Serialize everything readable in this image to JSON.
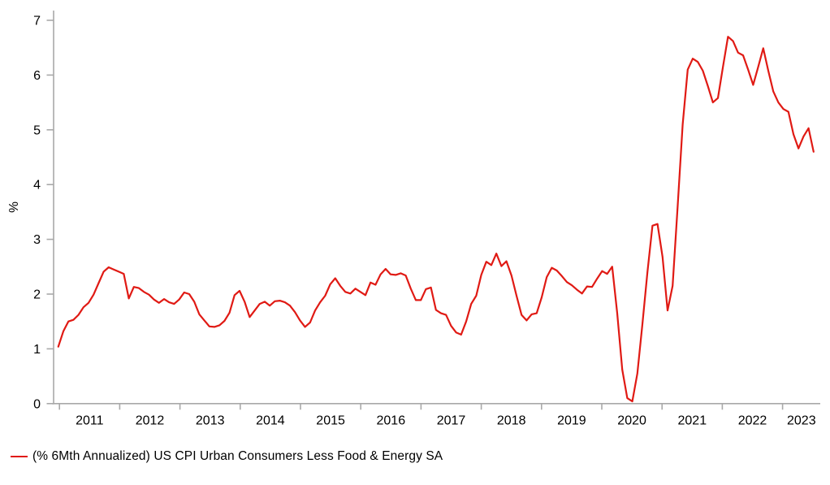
{
  "chart_data": {
    "type": "line",
    "title": "",
    "xlabel": "",
    "ylabel": "%",
    "ylim": [
      0,
      7
    ],
    "y_ticks": [
      0,
      1,
      2,
      3,
      4,
      5,
      6,
      7
    ],
    "x_tick_labels": [
      "2011",
      "2012",
      "2013",
      "2014",
      "2015",
      "2016",
      "2017",
      "2018",
      "2019",
      "2020",
      "2021",
      "2022",
      "2023"
    ],
    "frequency": "monthly",
    "x_start_month": "2011-01",
    "x_end_month": "2023-07",
    "grid": false,
    "legend_position": "bottom-left",
    "series": [
      {
        "name": "(% 6Mth Annualized) US CPI Urban Consumers Less Food & Energy SA",
        "color": "#e01a14",
        "values": [
          1.04,
          1.32,
          1.5,
          1.53,
          1.62,
          1.76,
          1.84,
          1.99,
          2.2,
          2.41,
          2.49,
          2.45,
          2.41,
          2.37,
          1.92,
          2.13,
          2.11,
          2.04,
          1.99,
          1.9,
          1.84,
          1.91,
          1.85,
          1.82,
          1.9,
          2.03,
          2.0,
          1.86,
          1.63,
          1.52,
          1.41,
          1.4,
          1.43,
          1.51,
          1.66,
          1.98,
          2.06,
          1.86,
          1.58,
          1.7,
          1.82,
          1.86,
          1.79,
          1.87,
          1.88,
          1.85,
          1.79,
          1.67,
          1.52,
          1.4,
          1.48,
          1.7,
          1.85,
          1.97,
          2.18,
          2.29,
          2.15,
          2.04,
          2.01,
          2.1,
          2.04,
          1.98,
          2.21,
          2.17,
          2.36,
          2.46,
          2.36,
          2.35,
          2.38,
          2.34,
          2.1,
          1.89,
          1.89,
          2.09,
          2.12,
          1.71,
          1.65,
          1.62,
          1.42,
          1.3,
          1.26,
          1.5,
          1.82,
          1.97,
          2.35,
          2.59,
          2.53,
          2.74,
          2.51,
          2.6,
          2.34,
          1.97,
          1.62,
          1.52,
          1.63,
          1.65,
          1.94,
          2.31,
          2.48,
          2.43,
          2.33,
          2.22,
          2.16,
          2.08,
          2.01,
          2.14,
          2.13,
          2.28,
          2.42,
          2.37,
          2.5,
          1.65,
          0.62,
          0.1,
          0.04,
          0.55,
          1.45,
          2.4,
          3.25,
          3.28,
          2.68,
          1.7,
          2.15,
          3.6,
          5.1,
          6.1,
          6.3,
          6.24,
          6.08,
          5.8,
          5.5,
          5.58,
          6.15,
          6.7,
          6.62,
          6.41,
          6.36,
          6.1,
          5.82,
          6.15,
          6.49,
          6.08,
          5.7,
          5.5,
          5.38,
          5.33,
          4.92,
          4.66,
          4.88,
          5.03,
          4.6
        ]
      }
    ]
  },
  "legend": {
    "label": "(% 6Mth Annualized) US CPI Urban Consumers Less Food & Energy SA"
  },
  "colors": {
    "line": "#e01a14",
    "axis": "#a9a9a9",
    "text": "#000000",
    "background": "#ffffff"
  }
}
